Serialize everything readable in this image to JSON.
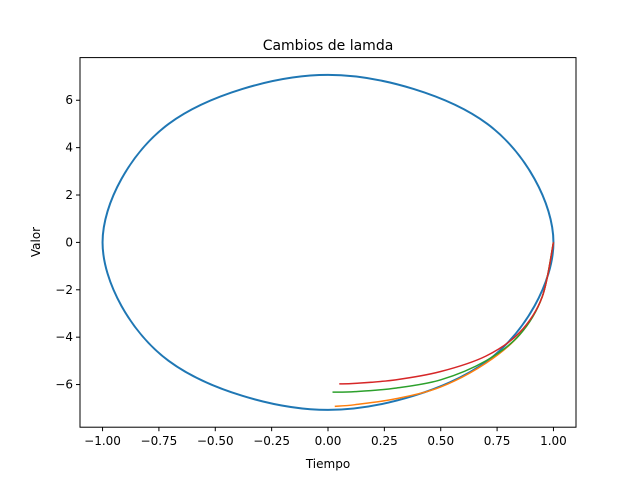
{
  "chart_data": {
    "type": "line",
    "title": "Cambios de lamda",
    "xlabel": "Tiempo",
    "ylabel": "Valor",
    "xlim": [
      -1.1,
      1.1
    ],
    "ylim": [
      -7.8,
      7.8
    ],
    "xticks": [
      -1.0,
      -0.75,
      -0.5,
      -0.25,
      0.0,
      0.25,
      0.5,
      0.75,
      1.0
    ],
    "xtick_labels": [
      "−1.00",
      "−0.75",
      "−0.50",
      "−0.25",
      "0.00",
      "0.25",
      "0.50",
      "0.75",
      "1.00"
    ],
    "yticks": [
      -6,
      -4,
      -2,
      0,
      2,
      4,
      6
    ],
    "ytick_labels": [
      "−6",
      "−4",
      "−2",
      "0",
      "2",
      "4",
      "6"
    ],
    "grid": false,
    "legend": false,
    "series": [
      {
        "color": "#1f77b4",
        "shape": "closed orbit",
        "x": [
          1.0,
          0.707,
          0.0,
          -0.707,
          -1.0,
          -0.707,
          0.0,
          0.707,
          1.0
        ],
        "y": [
          0.0,
          5.0,
          7.07,
          5.0,
          0.0,
          -5.0,
          -7.07,
          -5.0,
          0.0
        ]
      },
      {
        "color": "#ff7f0e",
        "x": [
          1.0,
          0.95,
          0.85,
          0.7,
          0.5,
          0.3,
          0.12,
          0.03
        ],
        "y": [
          0.0,
          -2.3,
          -3.9,
          -5.1,
          -6.1,
          -6.6,
          -6.85,
          -6.92
        ]
      },
      {
        "color": "#2ca02c",
        "x": [
          1.0,
          0.95,
          0.85,
          0.7,
          0.5,
          0.3,
          0.12,
          0.02
        ],
        "y": [
          0.0,
          -2.3,
          -3.9,
          -5.0,
          -5.8,
          -6.15,
          -6.3,
          -6.32
        ]
      },
      {
        "color": "#d62728",
        "x": [
          1.0,
          0.95,
          0.85,
          0.7,
          0.5,
          0.3,
          0.12,
          0.05
        ],
        "y": [
          0.0,
          -2.3,
          -3.8,
          -4.8,
          -5.45,
          -5.8,
          -5.95,
          -5.97
        ]
      }
    ]
  }
}
